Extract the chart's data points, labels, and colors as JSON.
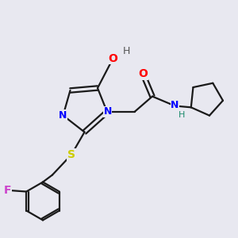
{
  "bg_color": "#e8e8f0",
  "bond_color": "#1a1a1a",
  "atom_colors": {
    "O": "#ff0000",
    "N": "#0000ff",
    "S": "#cccc00",
    "F": "#cc44cc",
    "H_label": "#1a8a6a",
    "H_top": "#555555",
    "C": "#1a1a1a"
  },
  "figsize": [
    3.0,
    3.0
  ],
  "dpi": 100
}
